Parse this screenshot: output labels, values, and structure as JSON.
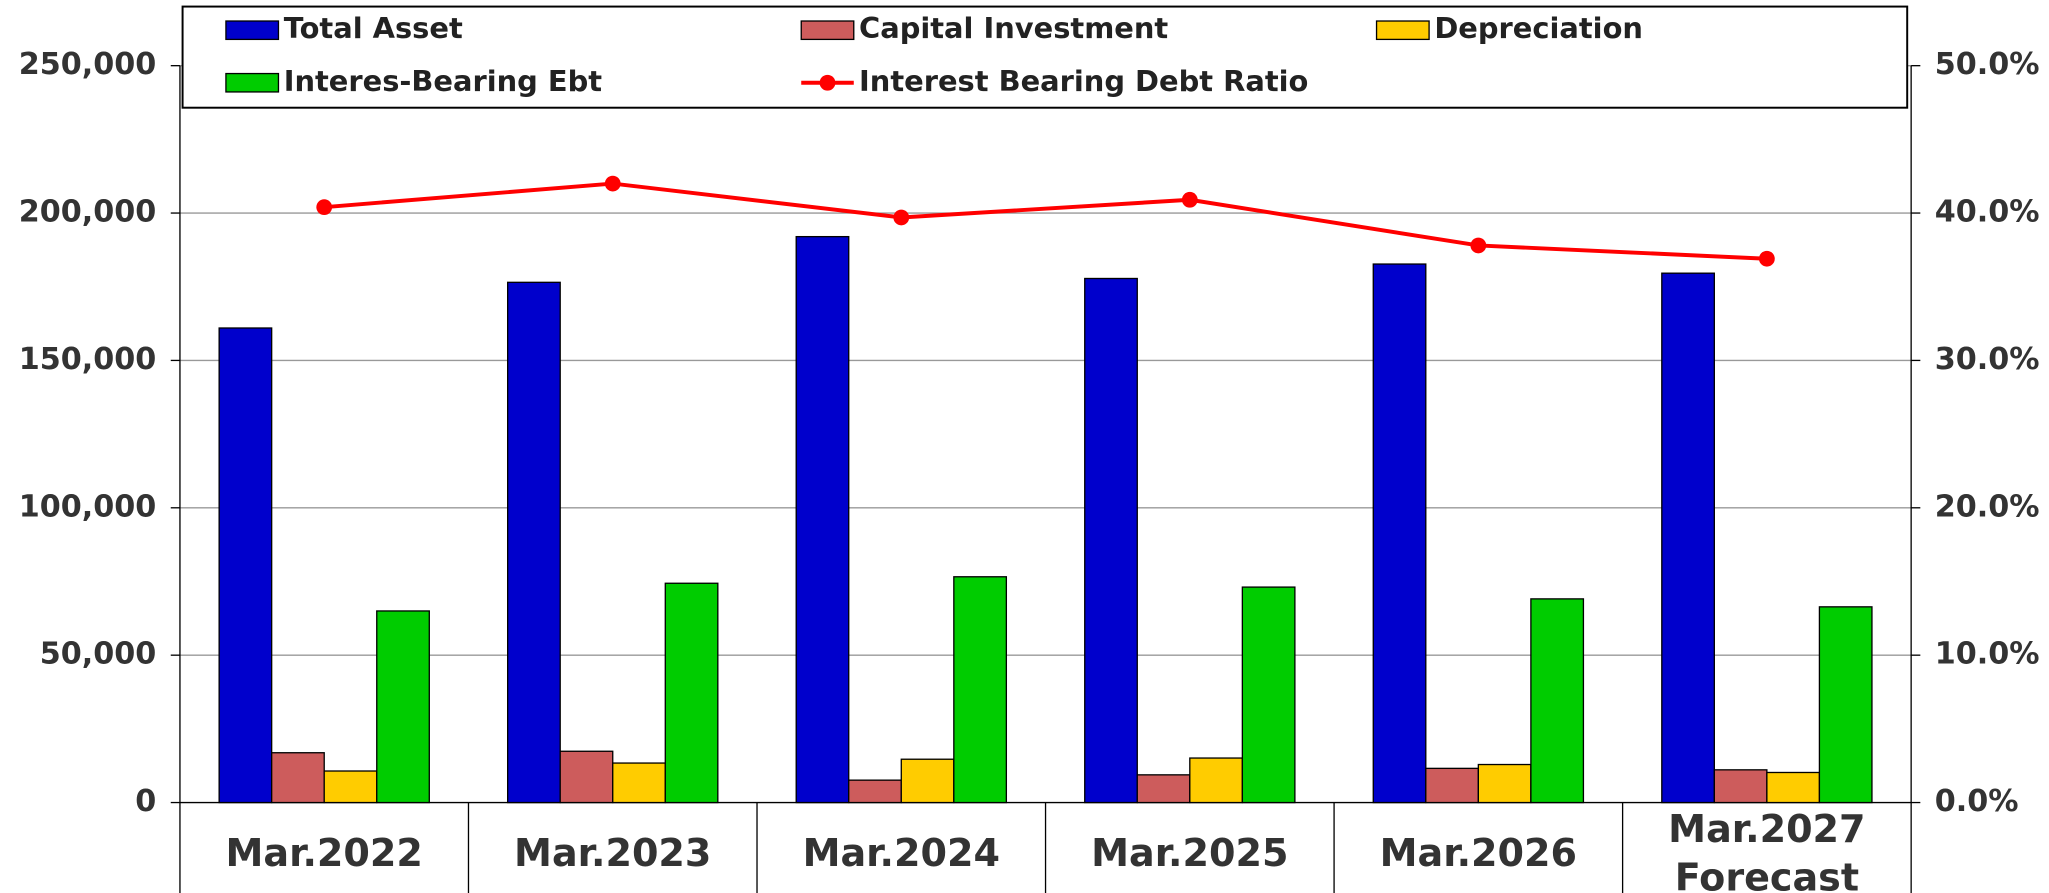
{
  "chart_data": {
    "type": "bar",
    "categories": [
      "Mar.2022",
      "Mar.2023",
      "Mar.2024",
      "Mar.2025",
      "Mar.2026",
      "Mar.2027\nForecast"
    ],
    "series": [
      {
        "name": "Total Asset",
        "color": "#0000cc",
        "values": [
          161000,
          176500,
          192000,
          177800,
          182700,
          179600
        ]
      },
      {
        "name": "Capital Investment",
        "color": "#cd5c5c",
        "values": [
          16900,
          17400,
          7600,
          9400,
          11600,
          11100
        ]
      },
      {
        "name": "Depreciation",
        "color": "#ffcc00",
        "values": [
          10700,
          13400,
          14700,
          15100,
          12900,
          10200
        ]
      },
      {
        "name": "Interes-Bearing Ebt",
        "color": "#00cc00",
        "values": [
          65000,
          74400,
          76600,
          73100,
          69100,
          66400
        ]
      },
      {
        "name": "Interest Bearing Debt Ratio",
        "color": "#ff0000",
        "type": "line",
        "axis": "y2",
        "values": [
          40.4,
          42.0,
          39.7,
          40.9,
          37.8,
          36.9
        ]
      }
    ],
    "ylim": [
      0,
      250000
    ],
    "yticks": [
      0,
      {
        "value": 50000,
        "label": "50,000"
      },
      {
        "value": 100000,
        "label": "100,000"
      },
      {
        "value": 150000,
        "label": "150,000"
      },
      {
        "value": 200000,
        "label": "200,000"
      },
      {
        "value": 250000,
        "label": "250,000"
      }
    ],
    "y2lim": [
      0,
      50
    ],
    "y2ticks": [
      {
        "value": 0,
        "label": "0.0%"
      },
      {
        "value": 10,
        "label": "10.0%"
      },
      {
        "value": 20,
        "label": "20.0%"
      },
      {
        "value": 30,
        "label": "30.0%"
      },
      {
        "value": 40,
        "label": "40.0%"
      },
      {
        "value": 50,
        "label": "50.0%"
      }
    ],
    "grid": true,
    "legend": "top"
  }
}
